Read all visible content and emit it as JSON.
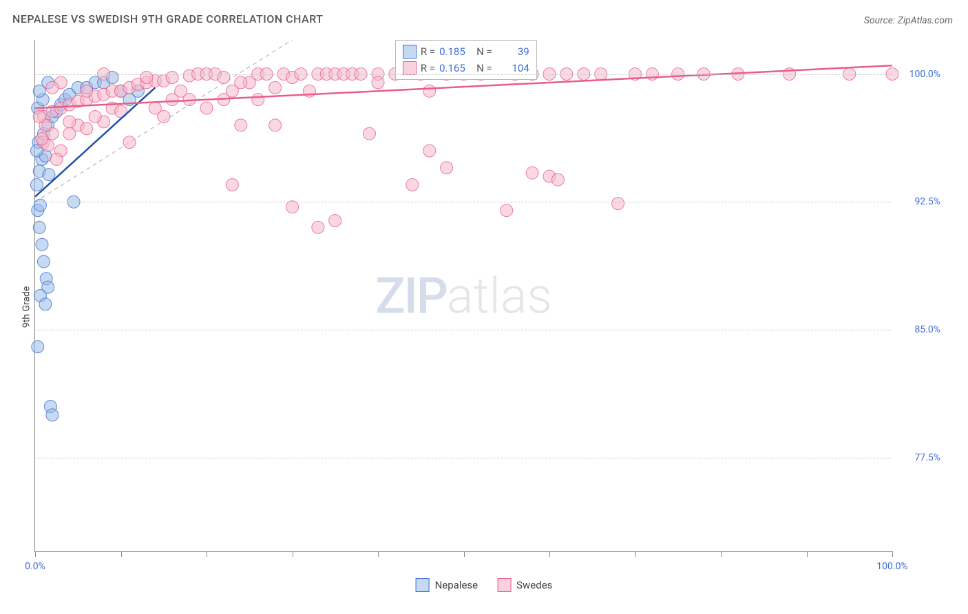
{
  "title": "NEPALESE VS SWEDISH 9TH GRADE CORRELATION CHART",
  "source": "Source: ZipAtlas.com",
  "y_axis_label": "9th Grade",
  "watermark_parts": {
    "zip": "ZIP",
    "atlas": "atlas"
  },
  "chart": {
    "type": "scatter",
    "xlim": [
      0,
      100
    ],
    "ylim": [
      72,
      102
    ],
    "x_ticks": [
      0,
      10,
      20,
      30,
      40,
      50,
      60,
      70,
      80,
      90,
      100
    ],
    "x_tick_labels": {
      "0": "0.0%",
      "100": "100.0%"
    },
    "y_gridlines": [
      77.5,
      85.0,
      92.5,
      100.0
    ],
    "y_tick_labels": [
      "77.5%",
      "85.0%",
      "92.5%",
      "100.0%"
    ],
    "grid_color": "#cccccc",
    "axis_color": "#888888",
    "background_color": "#ffffff",
    "marker_radius": 9,
    "marker_opacity": 0.55,
    "trendline_width": 2.5,
    "identity_line": {
      "x1": 0,
      "y1": 92.5,
      "x2": 30,
      "y2": 102,
      "color": "#aaaaaa",
      "dash": "6,5",
      "width": 1
    }
  },
  "series": [
    {
      "name": "Nepalese",
      "color_fill": "#9bbce8",
      "color_stroke": "#3b6fd6",
      "legend_swatch_fill": "#c6d9f2",
      "legend_swatch_stroke": "#3b6fd6",
      "R": "0.185",
      "N": "39",
      "trendline": {
        "x1": 0,
        "y1": 92.8,
        "x2": 14,
        "y2": 99.2,
        "color": "#1e4fa8"
      },
      "points": [
        [
          0.2,
          93.5
        ],
        [
          0.3,
          92.0
        ],
        [
          0.5,
          91.0
        ],
        [
          0.8,
          90.0
        ],
        [
          1.0,
          89.0
        ],
        [
          1.3,
          88.0
        ],
        [
          1.5,
          87.5
        ],
        [
          0.6,
          87.0
        ],
        [
          1.2,
          86.5
        ],
        [
          0.3,
          84.0
        ],
        [
          1.8,
          80.5
        ],
        [
          2.0,
          80.0
        ],
        [
          0.4,
          96.0
        ],
        [
          1.0,
          96.5
        ],
        [
          1.5,
          97.0
        ],
        [
          2.0,
          97.5
        ],
        [
          2.5,
          97.8
        ],
        [
          3.0,
          98.2
        ],
        [
          3.5,
          98.5
        ],
        [
          4.0,
          98.8
        ],
        [
          5.0,
          99.2
        ],
        [
          6.0,
          99.2
        ],
        [
          7.0,
          99.5
        ],
        [
          8.0,
          99.5
        ],
        [
          9.0,
          99.8
        ],
        [
          10.0,
          99.0
        ],
        [
          11.0,
          98.5
        ],
        [
          12.0,
          99.0
        ],
        [
          0.8,
          95.0
        ],
        [
          1.2,
          95.2
        ],
        [
          0.5,
          94.3
        ],
        [
          1.6,
          94.1
        ],
        [
          0.3,
          98.0
        ],
        [
          0.9,
          98.5
        ],
        [
          4.5,
          92.5
        ],
        [
          1.5,
          99.5
        ],
        [
          0.5,
          99.0
        ],
        [
          0.2,
          95.5
        ],
        [
          0.6,
          92.3
        ]
      ]
    },
    {
      "name": "Swedes",
      "color_fill": "#f5b8cb",
      "color_stroke": "#e85d8a",
      "legend_swatch_fill": "#f9d2de",
      "legend_swatch_stroke": "#e85d8a",
      "R": "0.165",
      "N": "104",
      "trendline": {
        "x1": 0,
        "y1": 98.0,
        "x2": 100,
        "y2": 100.5,
        "color": "#e85d8a"
      },
      "points": [
        [
          1,
          97.5
        ],
        [
          2,
          97.8
        ],
        [
          3,
          98.0
        ],
        [
          4,
          98.2
        ],
        [
          5,
          98.4
        ],
        [
          6,
          98.5
        ],
        [
          7,
          98.7
        ],
        [
          8,
          98.8
        ],
        [
          9,
          99.0
        ],
        [
          10,
          99.0
        ],
        [
          11,
          99.2
        ],
        [
          12,
          99.4
        ],
        [
          13,
          99.5
        ],
        [
          14,
          99.6
        ],
        [
          15,
          99.6
        ],
        [
          16,
          99.8
        ],
        [
          17,
          99.0
        ],
        [
          18,
          99.9
        ],
        [
          19,
          100.0
        ],
        [
          20,
          100.0
        ],
        [
          21,
          100.0
        ],
        [
          22,
          98.5
        ],
        [
          23,
          99.0
        ],
        [
          24,
          97.0
        ],
        [
          25,
          99.5
        ],
        [
          26,
          100.0
        ],
        [
          27,
          100.0
        ],
        [
          28,
          99.2
        ],
        [
          29,
          100.0
        ],
        [
          30,
          99.8
        ],
        [
          31,
          100.0
        ],
        [
          32,
          99.0
        ],
        [
          33,
          100.0
        ],
        [
          34,
          100.0
        ],
        [
          35,
          100.0
        ],
        [
          36,
          100.0
        ],
        [
          37,
          100.0
        ],
        [
          38,
          100.0
        ],
        [
          39,
          96.5
        ],
        [
          40,
          100.0
        ],
        [
          42,
          100.0
        ],
        [
          44,
          93.5
        ],
        [
          45,
          100.0
        ],
        [
          46,
          99.0
        ],
        [
          48,
          100.0
        ],
        [
          50,
          100.0
        ],
        [
          52,
          100.0
        ],
        [
          55,
          92.0
        ],
        [
          56,
          100.0
        ],
        [
          58,
          100.0
        ],
        [
          60,
          100.0
        ],
        [
          62,
          100.0
        ],
        [
          64,
          100.0
        ],
        [
          66,
          100.0
        ],
        [
          68,
          92.4
        ],
        [
          70,
          100.0
        ],
        [
          72,
          100.0
        ],
        [
          75,
          100.0
        ],
        [
          78,
          100.0
        ],
        [
          14,
          98.0
        ],
        [
          15,
          97.5
        ],
        [
          18,
          98.5
        ],
        [
          4,
          96.5
        ],
        [
          6,
          99.0
        ],
        [
          3,
          99.5
        ],
        [
          2,
          99.2
        ],
        [
          23,
          93.5
        ],
        [
          28,
          97.0
        ],
        [
          13,
          99.8
        ],
        [
          8,
          100.0
        ],
        [
          11,
          96.0
        ],
        [
          30,
          92.2
        ],
        [
          33,
          91.0
        ],
        [
          35,
          91.4
        ],
        [
          46,
          95.5
        ],
        [
          58,
          94.2
        ],
        [
          60,
          94.0
        ],
        [
          61,
          93.8
        ],
        [
          8,
          97.2
        ],
        [
          9,
          98.0
        ],
        [
          10,
          97.8
        ],
        [
          5,
          97.0
        ],
        [
          7,
          97.5
        ],
        [
          4,
          97.2
        ],
        [
          6,
          96.8
        ],
        [
          2,
          96.5
        ],
        [
          1,
          96.0
        ],
        [
          3,
          95.5
        ],
        [
          2.5,
          95.0
        ],
        [
          1.5,
          95.8
        ],
        [
          0.8,
          96.2
        ],
        [
          1.2,
          97.0
        ],
        [
          0.5,
          97.5
        ],
        [
          16,
          98.5
        ],
        [
          20,
          98.0
        ],
        [
          24,
          99.5
        ],
        [
          26,
          98.5
        ],
        [
          22,
          99.8
        ],
        [
          40,
          99.5
        ],
        [
          48,
          94.5
        ],
        [
          100,
          100.0
        ],
        [
          82,
          100.0
        ],
        [
          88,
          100.0
        ],
        [
          95,
          100.0
        ]
      ]
    }
  ],
  "legend_box": {
    "rows": [
      {
        "series_idx": 0,
        "r_label": "R =",
        "n_label": "N ="
      },
      {
        "series_idx": 1,
        "r_label": "R =",
        "n_label": "N ="
      }
    ]
  },
  "bottom_legend": [
    {
      "series_idx": 0
    },
    {
      "series_idx": 1
    }
  ]
}
